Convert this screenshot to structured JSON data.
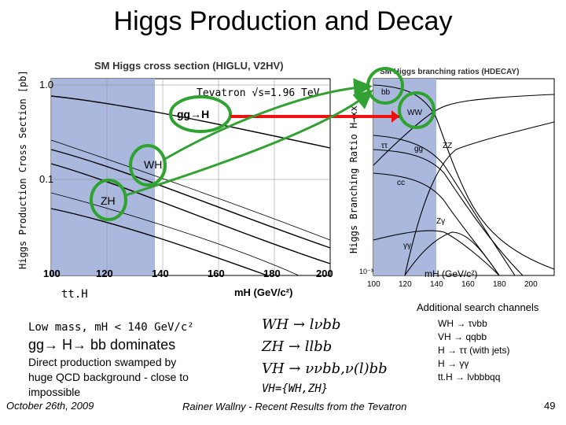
{
  "slide": {
    "title": "Higgs Production and Decay",
    "footer_date": "October 26th, 2009",
    "footer_center": "Rainer Wallny - Recent Results from the Tevatron",
    "page_number": "49"
  },
  "cross_section_plot": {
    "title": "SM Higgs cross section (HIGLU, V2HV)",
    "ylabel": "Higgs Production Cross Section [pb]",
    "energy_label": "Tevatron √s=1.96 TeV",
    "xlabel": "mH (GeV/c²)",
    "x_ticks": [
      "100",
      "120",
      "140",
      "160",
      "180",
      "200"
    ],
    "y_ticks": [
      "1.0",
      "0.1"
    ],
    "curve_labels": [
      "gg→H",
      "WH",
      "ZH",
      "tt.H"
    ],
    "highlight_color": "#aab8de"
  },
  "branching_plot": {
    "title": "SM Higgs branching ratios (HDECAY)",
    "ylabel": "Higgs Branching Ratio H→xx",
    "xlabel": "mH (GeV/c²)",
    "x_ticks": [
      "100",
      "120",
      "140",
      "160",
      "180",
      "200"
    ],
    "y_ticks": [
      "10⁻³"
    ],
    "curve_labels": [
      "bb",
      "WW",
      "ττ",
      "gg",
      "cc",
      "ZZ",
      "γγ",
      "Zγ"
    ]
  },
  "text_blocks": {
    "low_mass_line": "Low mass, mH < 140 GeV/c²",
    "dominates": "gg→ H→ bb dominates",
    "swamped": [
      "Direct production swamped by",
      "huge QCD background - close to",
      "impossible"
    ],
    "channels": [
      "WH → lνbb",
      "ZH → llbb",
      "VH → ννbb,ν(l)bb"
    ],
    "vh_note": "VH={WH,ZH}",
    "additional_title": "Additional search channels",
    "additional": [
      "WH → τνbb",
      "VH → qqbb",
      "H → ττ (with jets)",
      "H → γγ",
      "tt.H → lνbbbqq"
    ]
  },
  "colors": {
    "circle": "#2fa32f",
    "arrow_red": "#ee1111",
    "arrow_green": "#33a033",
    "band": "#aab8de"
  }
}
